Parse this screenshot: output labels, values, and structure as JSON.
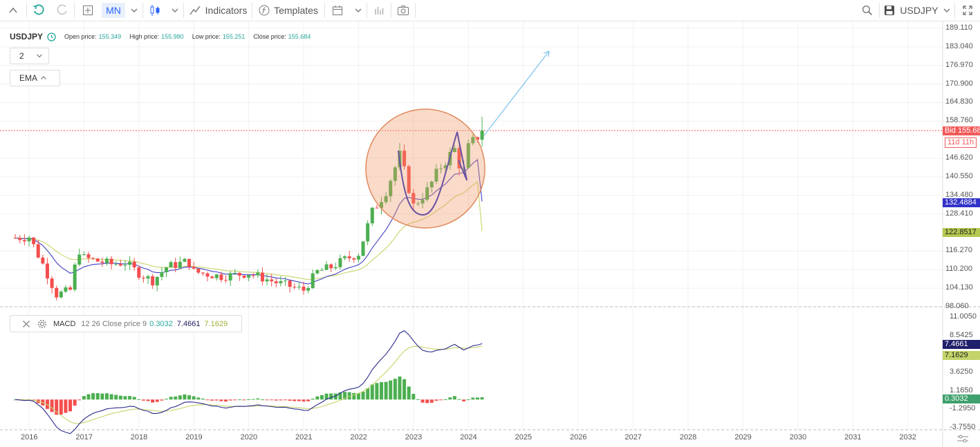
{
  "toolbar": {
    "timeframe": "MN",
    "indicators_label": "Indicators",
    "templates_label": "Templates",
    "symbol": "USDJPY"
  },
  "legend": {
    "symbol": "USDJPY",
    "open_label": "Open price:",
    "open": "155.349",
    "high_label": "High price:",
    "high": "155.980",
    "low_label": "Low price:",
    "low": "155.251",
    "close_label": "Close price:",
    "close": "155.684",
    "count_select": "2",
    "ema_label": "EMA"
  },
  "price_axis": {
    "ticks": [
      "189.110",
      "183.040",
      "176.970",
      "170.900",
      "164.830",
      "158.760",
      "146.620",
      "140.550",
      "134.480",
      "128.410",
      "116.270",
      "110.200",
      "104.130",
      "98.060"
    ],
    "bid_badge": "Bid 155.684",
    "timer_badge": "11d 11h",
    "ema_fast_badge": "132.4884",
    "ema_slow_badge": "122.8517"
  },
  "macd": {
    "name": "MACD",
    "params": "12 26 Close price 9",
    "hist_value": "0.3032",
    "macd_value": "7.4661",
    "signal_value": "7.1629",
    "ticks": [
      "11.0050",
      "8.5425",
      "3.6250",
      "1.1650",
      "-1.2950",
      "-3.7550"
    ]
  },
  "time_axis": {
    "years": [
      "2016",
      "2017",
      "2018",
      "2019",
      "2020",
      "2021",
      "2022",
      "2023",
      "2024",
      "2025",
      "2026",
      "2027",
      "2028",
      "2029",
      "2030",
      "2031",
      "2032"
    ]
  },
  "colors": {
    "up": "#4caf50",
    "down": "#f44d4d",
    "ema_fast": "#3f3fc4",
    "ema_slow": "#c8d46a",
    "macd_line": "#2a2a8a",
    "signal_line": "#c6d46a",
    "accent": "#2962ff",
    "bid": "#f25a5a"
  },
  "chart_data": {
    "type": "candlestick",
    "symbol": "USDJPY",
    "timeframe": "MN",
    "ylim": [
      98.06,
      189.11
    ],
    "x_range_years": [
      2016,
      2032
    ],
    "close_series": [
      {
        "t": 2015.75,
        "v": 120.6
      },
      {
        "t": 2016.0,
        "v": 121.0
      },
      {
        "t": 2016.25,
        "v": 112.0
      },
      {
        "t": 2016.5,
        "v": 102.0
      },
      {
        "t": 2016.75,
        "v": 103.5
      },
      {
        "t": 2016.9,
        "v": 117.0
      },
      {
        "t": 2017.0,
        "v": 114.0
      },
      {
        "t": 2017.5,
        "v": 112.0
      },
      {
        "t": 2017.75,
        "v": 112.5
      },
      {
        "t": 2018.0,
        "v": 109.0
      },
      {
        "t": 2018.25,
        "v": 106.5
      },
      {
        "t": 2018.5,
        "v": 111.0
      },
      {
        "t": 2018.9,
        "v": 113.0
      },
      {
        "t": 2019.0,
        "v": 109.5
      },
      {
        "t": 2019.5,
        "v": 108.0
      },
      {
        "t": 2019.75,
        "v": 108.5
      },
      {
        "t": 2020.0,
        "v": 109.0
      },
      {
        "t": 2020.25,
        "v": 107.5
      },
      {
        "t": 2020.5,
        "v": 106.0
      },
      {
        "t": 2020.9,
        "v": 104.0
      },
      {
        "t": 2021.0,
        "v": 103.5
      },
      {
        "t": 2021.25,
        "v": 109.5
      },
      {
        "t": 2021.5,
        "v": 111.0
      },
      {
        "t": 2021.75,
        "v": 113.5
      },
      {
        "t": 2022.0,
        "v": 115.5
      },
      {
        "t": 2022.25,
        "v": 129.0
      },
      {
        "t": 2022.5,
        "v": 136.0
      },
      {
        "t": 2022.75,
        "v": 147.5
      },
      {
        "t": 2022.9,
        "v": 138.0
      },
      {
        "t": 2023.0,
        "v": 131.0
      },
      {
        "t": 2023.25,
        "v": 136.0
      },
      {
        "t": 2023.5,
        "v": 144.0
      },
      {
        "t": 2023.75,
        "v": 149.5
      },
      {
        "t": 2023.9,
        "v": 141.0
      },
      {
        "t": 2024.0,
        "v": 150.0
      },
      {
        "t": 2024.25,
        "v": 155.684
      }
    ],
    "ema_fast_last": 132.4884,
    "ema_slow_last": 122.8517,
    "macd_last": 7.4661,
    "signal_last": 7.1629,
    "histogram_last": 0.3032,
    "annotations": [
      "cup-and-handle circle",
      "upward arrow target"
    ]
  }
}
